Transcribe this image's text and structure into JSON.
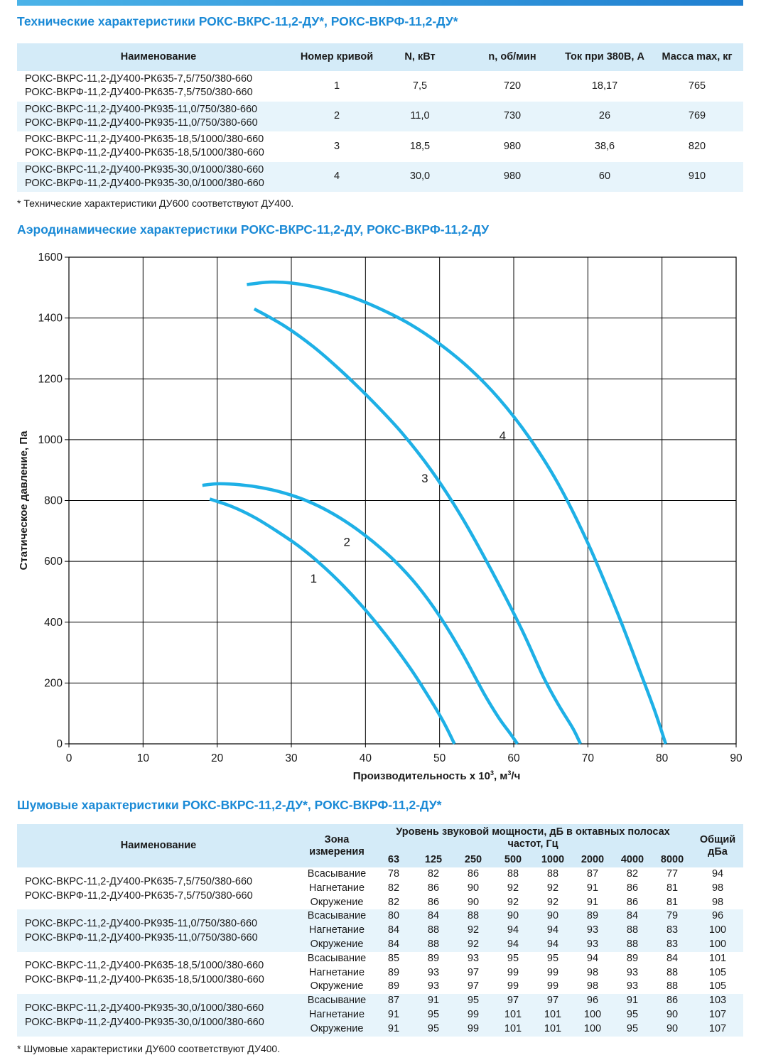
{
  "tech": {
    "title": "Технические характеристики РОКС-ВКРС-11,2-ДУ*, РОКС-ВКРФ-11,2-ДУ*",
    "headers": [
      "Наименование",
      "Номер кривой",
      "N, кВт",
      "n, об/мин",
      "Ток при 380В, А",
      "Масса max, кг"
    ],
    "rows": [
      {
        "name1": "РОКС-ВКРС-11,2-ДУ400-РК635-7,5/750/380-660",
        "name2": "РОКС-ВКРФ-11,2-ДУ400-РК635-7,5/750/380-660",
        "curve": "1",
        "power": "7,5",
        "rpm": "720",
        "current": "18,17",
        "mass": "765"
      },
      {
        "name1": "РОКС-ВКРС-11,2-ДУ400-РК935-11,0/750/380-660",
        "name2": "РОКС-ВКРФ-11,2-ДУ400-РК935-11,0/750/380-660",
        "curve": "2",
        "power": "11,0",
        "rpm": "730",
        "current": "26",
        "mass": "769"
      },
      {
        "name1": "РОКС-ВКРС-11,2-ДУ400-РК635-18,5/1000/380-660",
        "name2": "РОКС-ВКРФ-11,2-ДУ400-РК635-18,5/1000/380-660",
        "curve": "3",
        "power": "18,5",
        "rpm": "980",
        "current": "38,6",
        "mass": "820"
      },
      {
        "name1": "РОКС-ВКРС-11,2-ДУ400-РК935-30,0/1000/380-660",
        "name2": "РОКС-ВКРФ-11,2-ДУ400-РК935-30,0/1000/380-660",
        "curve": "4",
        "power": "30,0",
        "rpm": "980",
        "current": "60",
        "mass": "910"
      }
    ],
    "note": "* Технические характеристики ДУ600 соответствуют ДУ400."
  },
  "aero": {
    "title": "Аэродинамические характеристики РОКС-ВКРС-11,2-ДУ, РОКС-ВКРФ-11,2-ДУ"
  },
  "chart_data": {
    "type": "line",
    "title": "",
    "xlabel_main": "Производительность х 10",
    "xlabel_sup": "3",
    "xlabel_unit": ", м",
    "xlabel_unit_sup": "3",
    "xlabel_tail": "/ч",
    "ylabel": "Статическое давление, Па",
    "xlim": [
      0,
      90
    ],
    "ylim": [
      0,
      1600
    ],
    "xticks": [
      0,
      10,
      20,
      30,
      40,
      50,
      60,
      70,
      80,
      90
    ],
    "yticks": [
      0,
      200,
      400,
      600,
      800,
      1000,
      1200,
      1400,
      1600
    ],
    "grid": true,
    "color": "#1eb0e6",
    "series": [
      {
        "label": "1",
        "label_at": [
          33,
          530
        ],
        "x": [
          19,
          22,
          25,
          28,
          31,
          34,
          37,
          40,
          43,
          46,
          48,
          50,
          51,
          52
        ],
        "y": [
          805,
          780,
          745,
          700,
          650,
          590,
          520,
          440,
          350,
          250,
          175,
          95,
          50,
          0
        ]
      },
      {
        "label": "2",
        "label_at": [
          37.5,
          650
        ],
        "x": [
          18,
          20,
          23,
          26,
          29,
          32,
          35,
          38,
          41,
          44,
          47,
          50,
          53,
          56,
          58,
          59.5,
          60.5
        ],
        "y": [
          850,
          855,
          852,
          842,
          825,
          800,
          765,
          720,
          665,
          600,
          520,
          420,
          300,
          165,
          85,
          35,
          0
        ]
      },
      {
        "label": "3",
        "label_at": [
          48,
          860
        ],
        "x": [
          25,
          29,
          33,
          37,
          41,
          45,
          49,
          53,
          57,
          61,
          64,
          66,
          68,
          69
        ],
        "y": [
          1430,
          1375,
          1305,
          1220,
          1125,
          1020,
          895,
          745,
          570,
          380,
          220,
          130,
          50,
          0
        ]
      },
      {
        "label": "4",
        "label_at": [
          58.5,
          1000
        ],
        "x": [
          24,
          27,
          30,
          34,
          38,
          42,
          46,
          50,
          54,
          58,
          62,
          66,
          70,
          74,
          77,
          79,
          80.5
        ],
        "y": [
          1510,
          1518,
          1515,
          1498,
          1470,
          1430,
          1380,
          1315,
          1235,
          1135,
          1010,
          855,
          660,
          430,
          240,
          110,
          0
        ]
      }
    ]
  },
  "noise": {
    "title": "Шумовые характеристики РОКС-ВКРС-11,2-ДУ*, РОКС-ВКРФ-11,2-ДУ*",
    "h_name": "Наименование",
    "h_zone_1": "Зона",
    "h_zone_2": "измерения",
    "h_level": "Уровень звуковой мощности, дБ в октавных полосах частот, Гц",
    "h_total_1": "Общий",
    "h_total_2": "дБа",
    "freqs": [
      "63",
      "125",
      "250",
      "500",
      "1000",
      "2000",
      "4000",
      "8000"
    ],
    "zones": [
      "Всасывание",
      "Нагнетание",
      "Окружение"
    ],
    "groups": [
      {
        "name1": "РОКС-ВКРС-11,2-ДУ400-РК635-7,5/750/380-660",
        "name2": "РОКС-ВКРФ-11,2-ДУ400-РК635-7,5/750/380-660",
        "rows": [
          [
            "78",
            "82",
            "86",
            "88",
            "88",
            "87",
            "82",
            "77",
            "94"
          ],
          [
            "82",
            "86",
            "90",
            "92",
            "92",
            "91",
            "86",
            "81",
            "98"
          ],
          [
            "82",
            "86",
            "90",
            "92",
            "92",
            "91",
            "86",
            "81",
            "98"
          ]
        ]
      },
      {
        "name1": "РОКС-ВКРС-11,2-ДУ400-РК935-11,0/750/380-660",
        "name2": "РОКС-ВКРФ-11,2-ДУ400-РК935-11,0/750/380-660",
        "rows": [
          [
            "80",
            "84",
            "88",
            "90",
            "90",
            "89",
            "84",
            "79",
            "96"
          ],
          [
            "84",
            "88",
            "92",
            "94",
            "94",
            "93",
            "88",
            "83",
            "100"
          ],
          [
            "84",
            "88",
            "92",
            "94",
            "94",
            "93",
            "88",
            "83",
            "100"
          ]
        ]
      },
      {
        "name1": "РОКС-ВКРС-11,2-ДУ400-РК635-18,5/1000/380-660",
        "name2": "РОКС-ВКРФ-11,2-ДУ400-РК635-18,5/1000/380-660",
        "rows": [
          [
            "85",
            "89",
            "93",
            "95",
            "95",
            "94",
            "89",
            "84",
            "101"
          ],
          [
            "89",
            "93",
            "97",
            "99",
            "99",
            "98",
            "93",
            "88",
            "105"
          ],
          [
            "89",
            "93",
            "97",
            "99",
            "99",
            "98",
            "93",
            "88",
            "105"
          ]
        ]
      },
      {
        "name1": "РОКС-ВКРС-11,2-ДУ400-РК935-30,0/1000/380-660",
        "name2": "РОКС-ВКРФ-11,2-ДУ400-РК935-30,0/1000/380-660",
        "rows": [
          [
            "87",
            "91",
            "95",
            "97",
            "97",
            "96",
            "91",
            "86",
            "103"
          ],
          [
            "91",
            "95",
            "99",
            "101",
            "101",
            "100",
            "95",
            "90",
            "107"
          ],
          [
            "91",
            "95",
            "99",
            "101",
            "101",
            "100",
            "95",
            "90",
            "107"
          ]
        ]
      }
    ],
    "note": "* Шумовые характеристики ДУ600 соответствуют ДУ400."
  }
}
